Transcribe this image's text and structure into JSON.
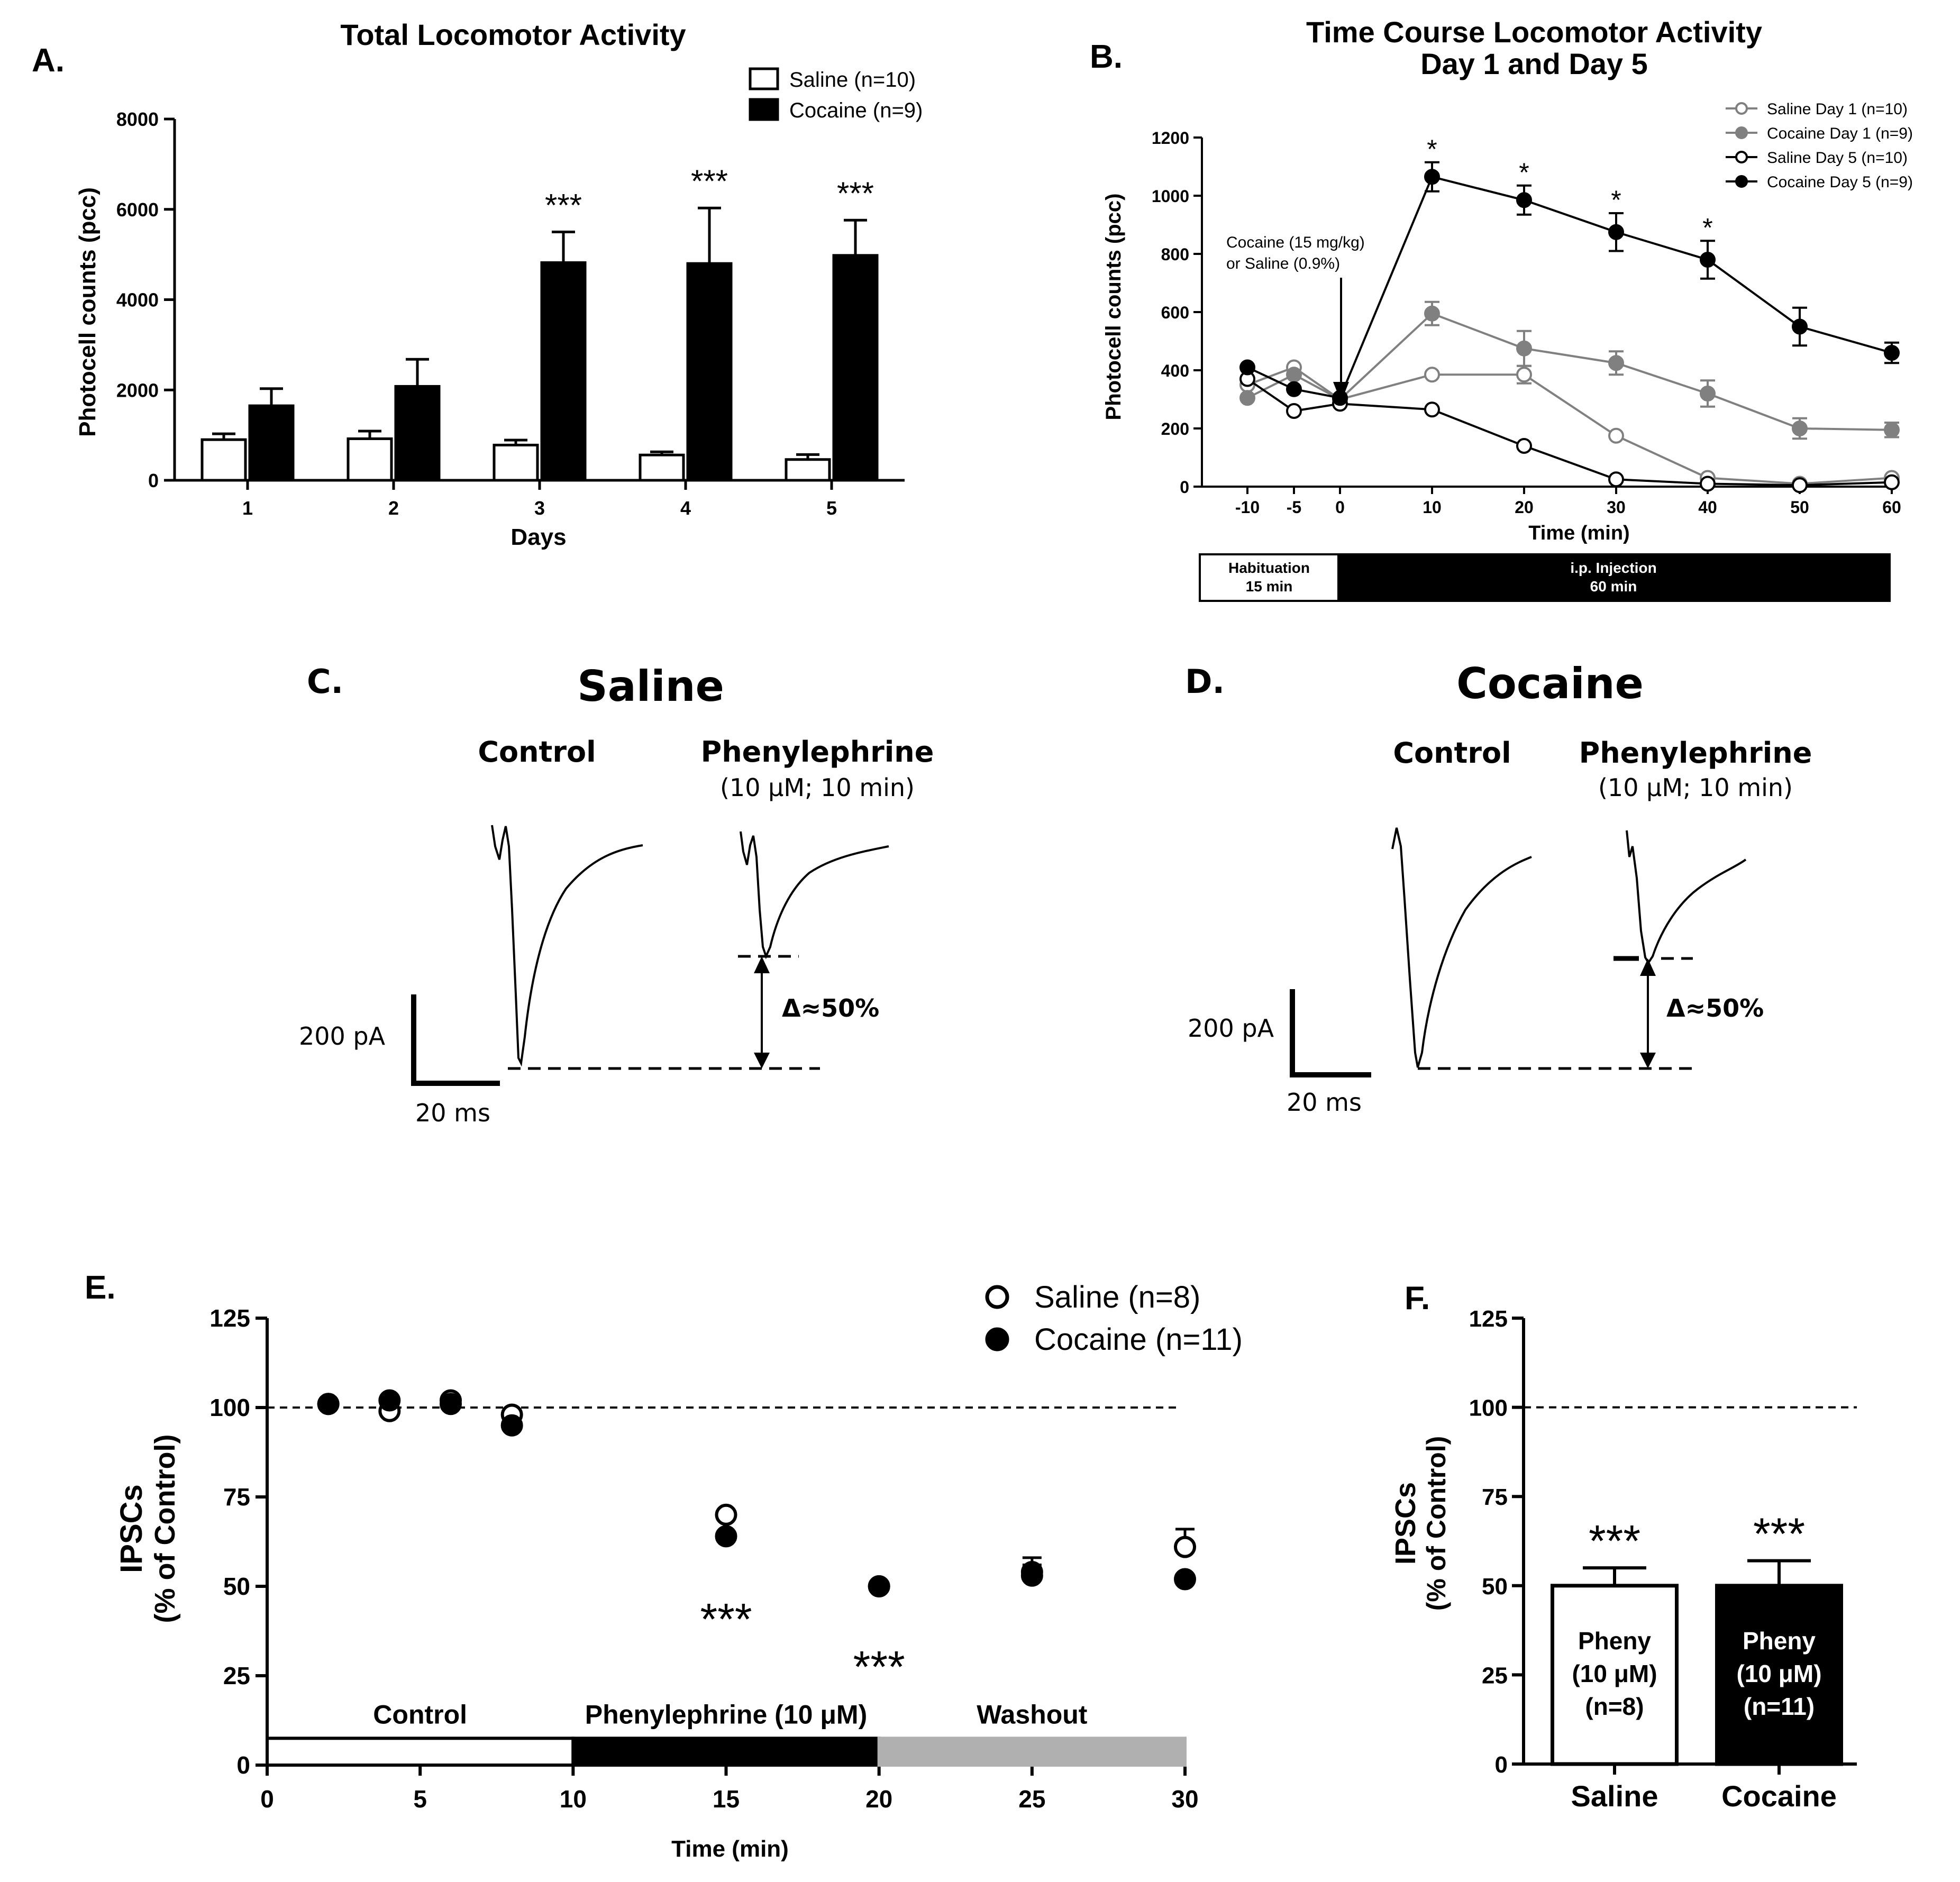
{
  "chart_data": [
    {
      "panel": "A.",
      "type": "bar",
      "title": "Total Locomotor Activity",
      "xlabel": "Days",
      "ylabel": "Photocell counts (pcc)",
      "categories": [
        "1",
        "2",
        "3",
        "4",
        "5"
      ],
      "ylim": [
        0,
        8000
      ],
      "yticks": [
        0,
        2000,
        4000,
        6000,
        8000
      ],
      "series": [
        {
          "name": "Saline (n=10)",
          "fill": "#ffffff",
          "values": [
            900,
            920,
            780,
            560,
            460
          ],
          "errors": [
            130,
            170,
            110,
            70,
            110
          ]
        },
        {
          "name": "Cocaine (n=9)",
          "fill": "#000000",
          "values": [
            1650,
            2080,
            4820,
            4800,
            4980
          ],
          "errors": [
            380,
            600,
            680,
            1230,
            780
          ]
        }
      ],
      "significance": [
        {
          "category": "3",
          "label": "***"
        },
        {
          "category": "4",
          "label": "***"
        },
        {
          "category": "5",
          "label": "***"
        }
      ]
    },
    {
      "panel": "B.",
      "type": "line",
      "title": [
        "Time Course Locomotor Activity",
        "Day 1 and Day 5"
      ],
      "xlabel": "Time (min)",
      "ylabel": "Photocell counts (pcc)",
      "x": [
        -10,
        -5,
        0,
        10,
        20,
        30,
        40,
        50,
        60
      ],
      "xticks": [
        "-10",
        "-5",
        "0",
        "10",
        "20",
        "30",
        "40",
        "50",
        "60"
      ],
      "ylim": [
        0,
        1200
      ],
      "yticks": [
        0,
        200,
        400,
        600,
        800,
        1000,
        1200
      ],
      "series": [
        {
          "name": "Saline Day 1 (n=10)",
          "color": "#808080",
          "marker": "open",
          "values": [
            350,
            410,
            300,
            385,
            385,
            175,
            30,
            10,
            30
          ],
          "errors": [
            0,
            0,
            0,
            0,
            30,
            0,
            0,
            0,
            0
          ]
        },
        {
          "name": "Cocaine Day 1 (n=9)",
          "color": "#808080",
          "marker": "filled",
          "values": [
            305,
            385,
            300,
            595,
            475,
            425,
            320,
            200,
            195
          ],
          "errors": [
            0,
            0,
            0,
            40,
            60,
            40,
            45,
            35,
            25
          ]
        },
        {
          "name": "Saline Day 5 (n=10)",
          "color": "#000000",
          "marker": "open",
          "values": [
            370,
            260,
            285,
            265,
            140,
            25,
            10,
            5,
            15
          ],
          "errors": [
            0,
            0,
            0,
            0,
            0,
            0,
            0,
            0,
            0
          ]
        },
        {
          "name": "Cocaine Day 5 (n=9)",
          "color": "#000000",
          "marker": "filled",
          "values": [
            410,
            335,
            305,
            1065,
            985,
            875,
            780,
            550,
            460
          ],
          "errors": [
            0,
            0,
            0,
            50,
            50,
            65,
            65,
            65,
            35
          ]
        }
      ],
      "significance": [
        {
          "x": 10,
          "label": "*"
        },
        {
          "x": 20,
          "label": "*"
        },
        {
          "x": 30,
          "label": "*"
        },
        {
          "x": 40,
          "label": "*"
        }
      ],
      "annotation": [
        "Cocaine (15 mg/kg)",
        "or Saline (0.9%)"
      ],
      "timeline": [
        {
          "label": [
            "Habituation",
            "15 min"
          ],
          "fill": "#ffffff"
        },
        {
          "label": [
            "i.p. Injection",
            "60 min"
          ],
          "fill": "#000000"
        }
      ]
    },
    {
      "panel": "C.",
      "type": "trace",
      "title": "Saline",
      "traces": [
        {
          "label": [
            "Control"
          ]
        },
        {
          "label": [
            "Phenylephrine",
            "(10 μM; 10 min)"
          ]
        }
      ],
      "delta": "Δ≈50%",
      "scale_y": "200 pA",
      "scale_x": "20 ms"
    },
    {
      "panel": "D.",
      "type": "trace",
      "title": "Cocaine",
      "traces": [
        {
          "label": [
            "Control"
          ]
        },
        {
          "label": [
            "Phenylephrine",
            "(10 μM; 10 min)"
          ]
        }
      ],
      "delta": "Δ≈50%",
      "scale_y": "200 pA",
      "scale_x": "20 ms"
    },
    {
      "panel": "E.",
      "type": "scatter",
      "xlabel": "Time (min)",
      "ylabel": [
        "IPSCs",
        "(% of Control)"
      ],
      "xlim": [
        0,
        30
      ],
      "xticks": [
        0,
        5,
        10,
        15,
        20,
        25,
        30
      ],
      "ylim": [
        0,
        125
      ],
      "yticks": [
        0,
        25,
        50,
        75,
        100,
        125
      ],
      "reference_line": 100,
      "series": [
        {
          "name": "Saline (n=8)",
          "marker": "open",
          "x": [
            2,
            4,
            6,
            8,
            15,
            20,
            25,
            30
          ],
          "values": [
            101,
            99,
            102,
            98,
            70,
            50,
            54,
            61
          ],
          "errors": [
            0,
            0,
            0,
            0,
            0,
            0,
            4,
            5
          ]
        },
        {
          "name": "Cocaine (n=11)",
          "marker": "filled",
          "x": [
            2,
            4,
            6,
            8,
            15,
            20,
            25,
            30
          ],
          "values": [
            101,
            102,
            101,
            95,
            64,
            50,
            53,
            52
          ],
          "errors": [
            0,
            0,
            0,
            0,
            0,
            0,
            3,
            0
          ]
        }
      ],
      "significance": [
        {
          "x": 15,
          "label": "***"
        },
        {
          "x": 20,
          "label": "***"
        }
      ],
      "phases": [
        {
          "label": "Control",
          "start": 0,
          "end": 10,
          "fill": "#ffffff"
        },
        {
          "label": "Phenylephrine (10 μM)",
          "start": 10,
          "end": 20,
          "fill": "#000000"
        },
        {
          "label": "Washout",
          "start": 20,
          "end": 30,
          "fill": "#b0b0b0"
        }
      ]
    },
    {
      "panel": "F.",
      "type": "bar",
      "ylabel": [
        "IPSCs",
        "(% of Control)"
      ],
      "categories": [
        "Saline",
        "Cocaine"
      ],
      "ylim": [
        0,
        125
      ],
      "yticks": [
        0,
        25,
        50,
        75,
        100,
        125
      ],
      "reference_line": 100,
      "values": [
        50,
        50
      ],
      "errors": [
        5,
        7
      ],
      "fills": [
        "#ffffff",
        "#000000"
      ],
      "bar_labels": [
        [
          "Pheny",
          "(10 μM)",
          "(n=8)"
        ],
        [
          "Pheny",
          "(10 μM)",
          "(n=11)"
        ]
      ],
      "significance": [
        "***",
        "***"
      ]
    }
  ]
}
